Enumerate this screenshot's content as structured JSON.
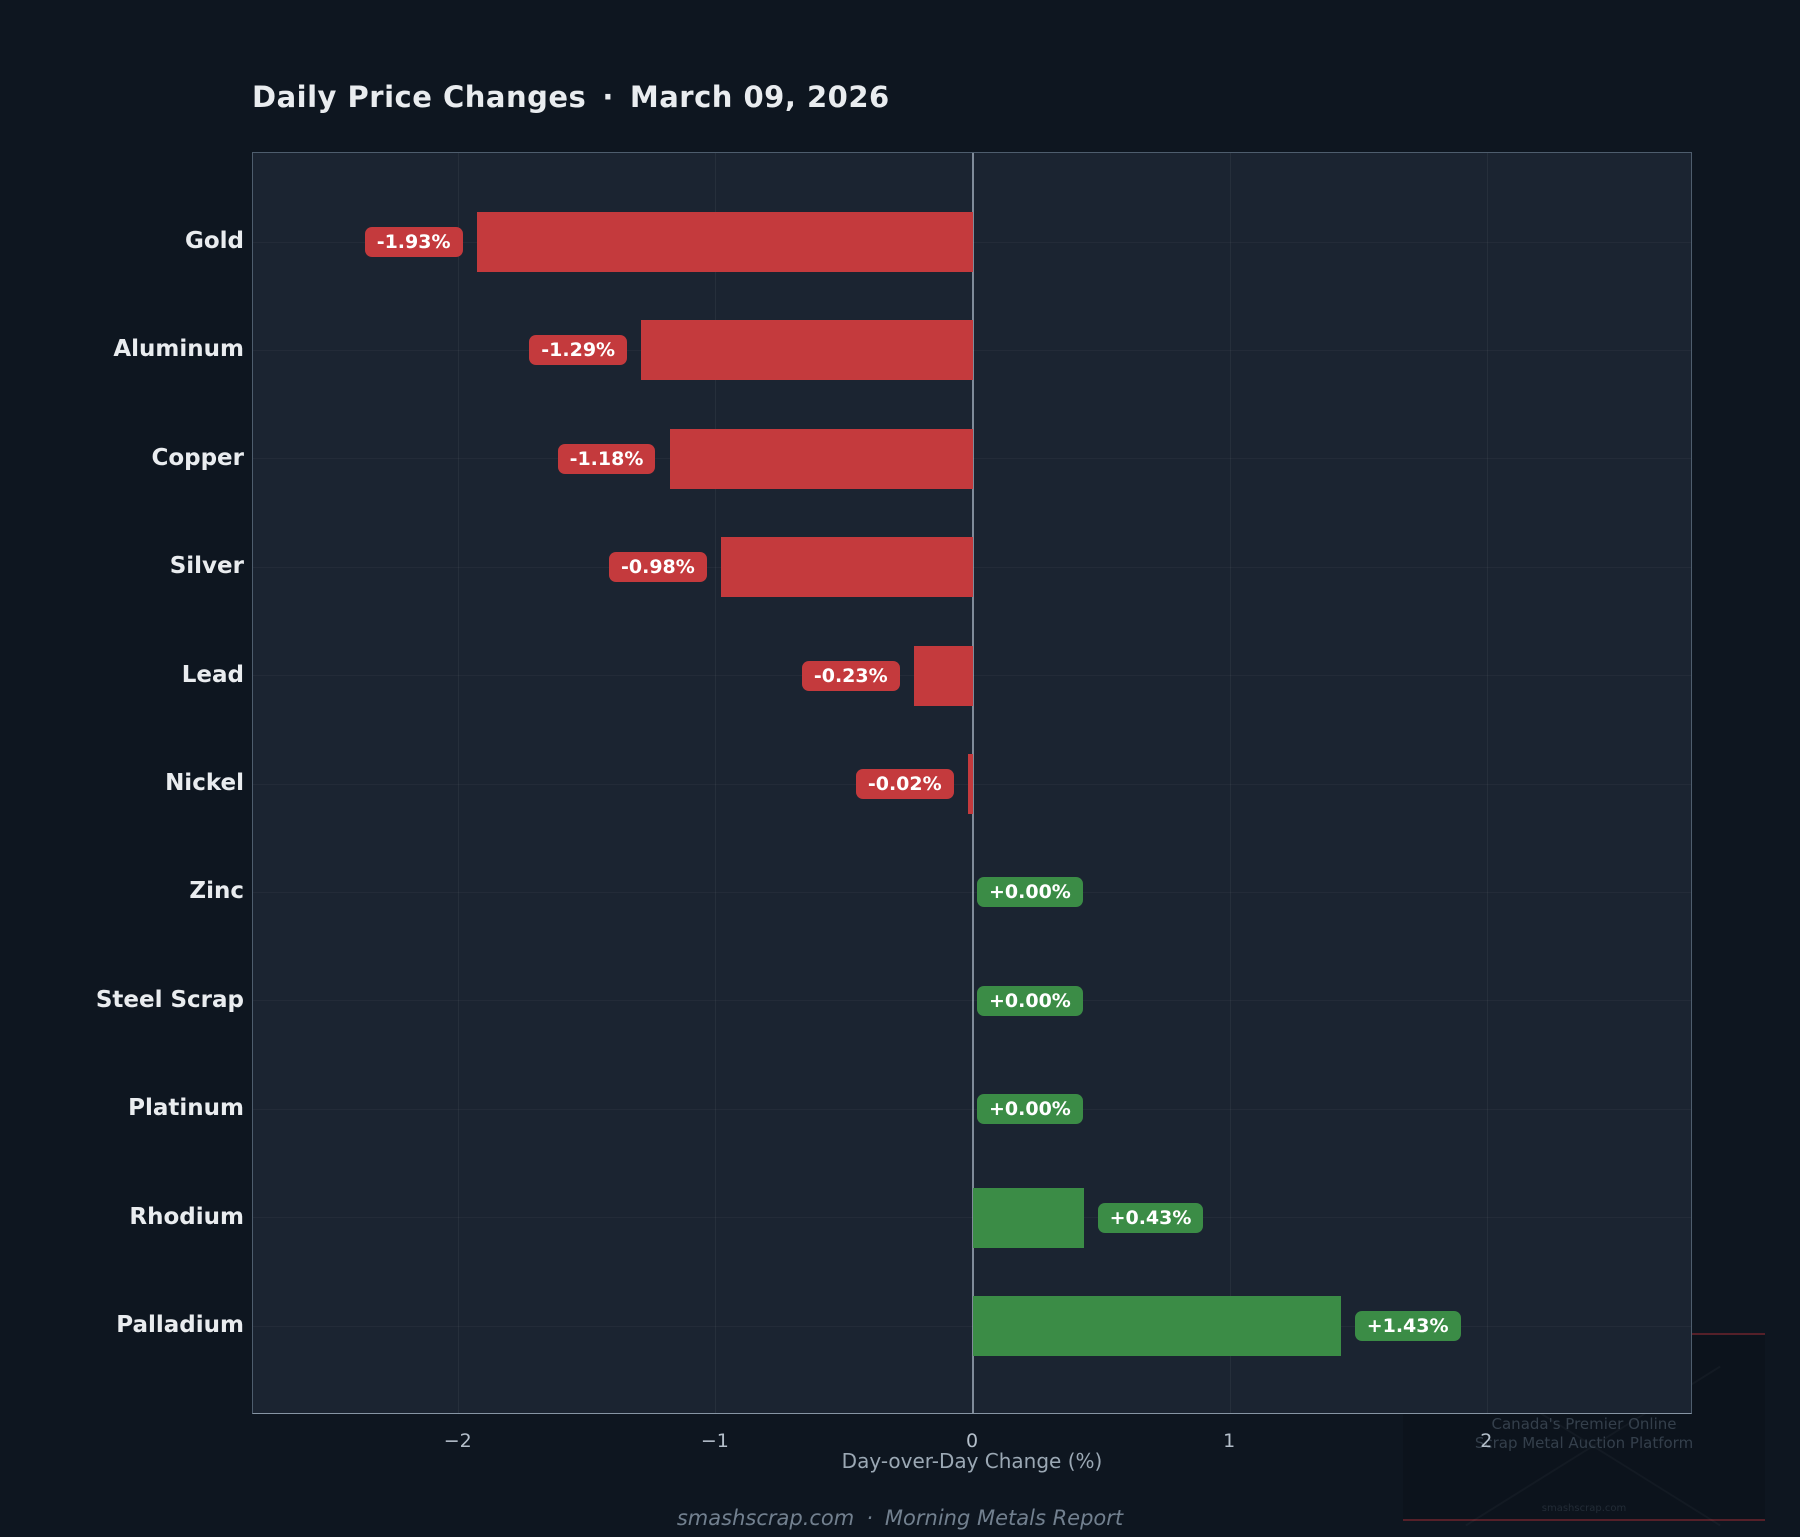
{
  "title": {
    "text": "Daily Price Changes",
    "separator": "·",
    "date": "March 09, 2026"
  },
  "chart_data": {
    "type": "bar",
    "orientation": "horizontal",
    "title": "Daily Price Changes · March 09, 2026",
    "categories": [
      "Gold",
      "Aluminum",
      "Copper",
      "Silver",
      "Lead",
      "Nickel",
      "Zinc",
      "Steel Scrap",
      "Platinum",
      "Rhodium",
      "Palladium"
    ],
    "values": [
      -1.93,
      -1.29,
      -1.18,
      -0.98,
      -0.23,
      -0.02,
      0.0,
      0.0,
      0.0,
      0.43,
      1.43
    ],
    "bar_labels": [
      "-1.93%",
      "-1.29%",
      "-1.18%",
      "-0.98%",
      "-0.23%",
      "-0.02%",
      "+0.00%",
      "+0.00%",
      "+0.00%",
      "+0.43%",
      "+1.43%"
    ],
    "xlabel": "Day-over-Day Change (%)",
    "xticks": [
      -2,
      -1,
      0,
      1,
      2
    ],
    "xtick_labels": [
      "−2",
      "−1",
      "0",
      "1",
      "2"
    ],
    "xlim": [
      -2.8,
      2.8
    ],
    "grid": true,
    "zero_line": true,
    "legend": "none",
    "colors": {
      "negative": "#c43a3d",
      "positive": "#3b8c46",
      "background": "#0e1620",
      "plot_background": "#1b2431",
      "zero_line": "#7f8b99",
      "category_label": "#e9ecef",
      "tick_label": "#b4bfca"
    }
  },
  "footer": {
    "site": "smashscrap.com",
    "separator": "·",
    "report": "Morning Metals Report"
  },
  "watermark": {
    "line1": "Canada's Premier Online",
    "line2": "Scrap Metal Auction Platform",
    "site": "smashscrap.com"
  }
}
